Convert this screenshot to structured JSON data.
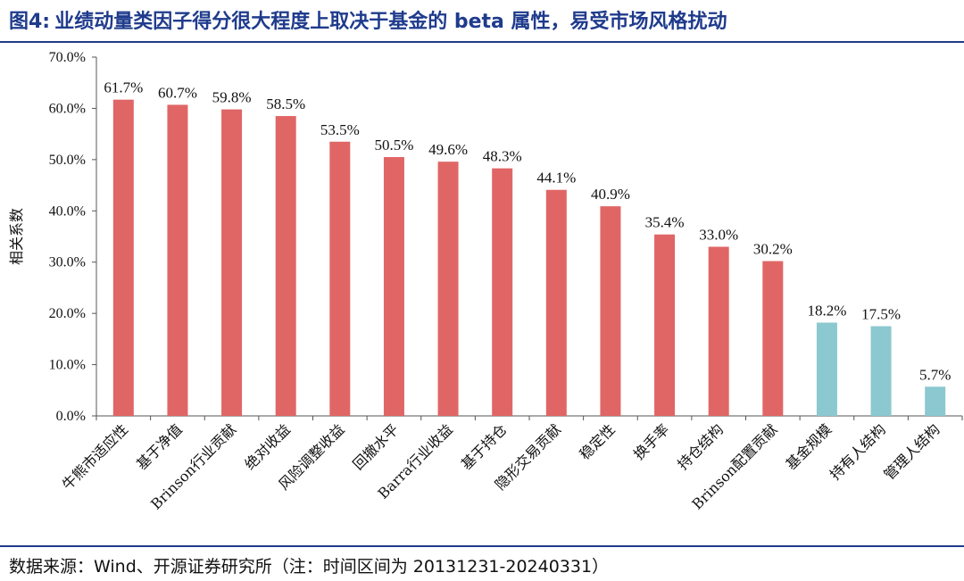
{
  "figure": {
    "label": "图4:",
    "title": "业绩动量类因子得分很大程度上取决于基金的 beta 属性，易受市场风格扰动",
    "source": "数据来源：Wind、开源证券研究所（注：时间区间为 20131231-20240331）"
  },
  "chart_data": {
    "type": "bar",
    "ylabel": "相关系数",
    "xlabel": "",
    "ylim": [
      0,
      70
    ],
    "yticks": [
      "0.0%",
      "10.0%",
      "20.0%",
      "30.0%",
      "40.0%",
      "50.0%",
      "60.0%",
      "70.0%"
    ],
    "grid": false,
    "colors": {
      "primary": "#e06666",
      "secondary": "#8cc8cf"
    },
    "bars": [
      {
        "category": "牛熊市适应性",
        "value": 61.7,
        "label": "61.7%",
        "group": "primary"
      },
      {
        "category": "基于净值",
        "value": 60.7,
        "label": "60.7%",
        "group": "primary"
      },
      {
        "category": "Brinson行业贡献",
        "value": 59.8,
        "label": "59.8%",
        "group": "primary"
      },
      {
        "category": "绝对收益",
        "value": 58.5,
        "label": "58.5%",
        "group": "primary"
      },
      {
        "category": "风险调整收益",
        "value": 53.5,
        "label": "53.5%",
        "group": "primary"
      },
      {
        "category": "回撤水平",
        "value": 50.5,
        "label": "50.5%",
        "group": "primary"
      },
      {
        "category": "Barra行业收益",
        "value": 49.6,
        "label": "49.6%",
        "group": "primary"
      },
      {
        "category": "基于持仓",
        "value": 48.3,
        "label": "48.3%",
        "group": "primary"
      },
      {
        "category": "隐形交易贡献",
        "value": 44.1,
        "label": "44.1%",
        "group": "primary"
      },
      {
        "category": "稳定性",
        "value": 40.9,
        "label": "40.9%",
        "group": "primary"
      },
      {
        "category": "换手率",
        "value": 35.4,
        "label": "35.4%",
        "group": "primary"
      },
      {
        "category": "持仓结构",
        "value": 33.0,
        "label": "33.0%",
        "group": "primary"
      },
      {
        "category": "Brinson配置贡献",
        "value": 30.2,
        "label": "30.2%",
        "group": "primary"
      },
      {
        "category": "基金规模",
        "value": 18.2,
        "label": "18.2%",
        "group": "secondary"
      },
      {
        "category": "持有人结构",
        "value": 17.5,
        "label": "17.5%",
        "group": "secondary"
      },
      {
        "category": "管理人结构",
        "value": 5.7,
        "label": "5.7%",
        "group": "secondary"
      }
    ]
  }
}
